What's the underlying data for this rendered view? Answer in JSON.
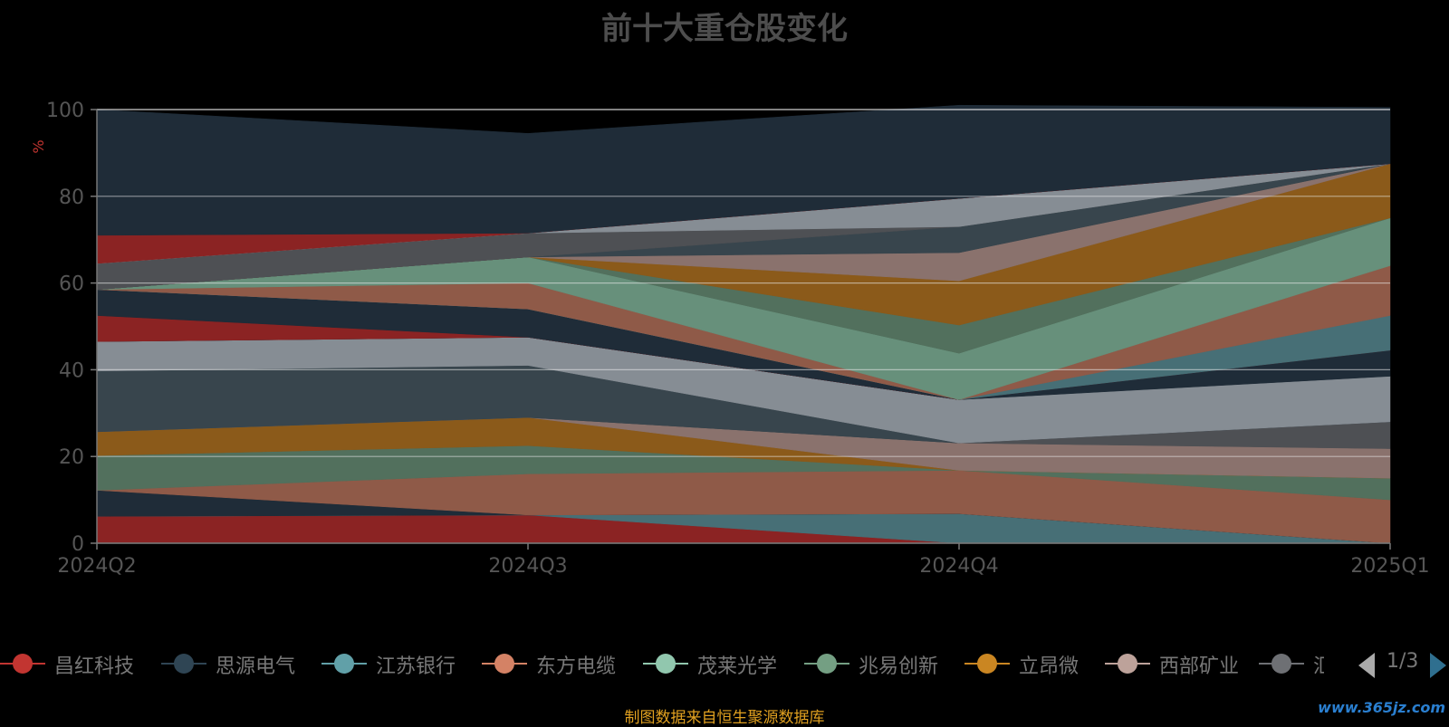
{
  "chart_data": {
    "type": "area",
    "stacked": true,
    "title": "前十大重仓股变化",
    "ylabel": "%",
    "ylim": [
      0,
      100
    ],
    "yticks": [
      0,
      20,
      40,
      60,
      80,
      100
    ],
    "grid": true,
    "categories": [
      "2024Q2",
      "2024Q3",
      "2024Q4",
      "2025Q1"
    ],
    "series": [
      {
        "name": "昌红科技",
        "color": "#8b2323",
        "values": [
          6.2,
          6.5,
          0,
          0
        ]
      },
      {
        "name": "",
        "color": "#476f76",
        "values": [
          0,
          0,
          6.8,
          0
        ]
      },
      {
        "name": "",
        "color": "#1f2c38",
        "values": [
          6.0,
          0,
          0,
          0
        ]
      },
      {
        "name": "东方电缆",
        "color": "#8f5a48",
        "values": [
          0,
          9.5,
          10.0,
          10.0
        ]
      },
      {
        "name": "",
        "color": "#52705d",
        "values": [
          8.0,
          6.5,
          0,
          5.0
        ]
      },
      {
        "name": "立昂微",
        "color": "#8b5a1a",
        "values": [
          5.5,
          6.5,
          0,
          0
        ]
      },
      {
        "name": "西部矿业",
        "color": "#8a726d",
        "values": [
          0,
          0,
          6.3,
          6.8
        ]
      },
      {
        "name": "",
        "color": "#4e5054",
        "values": [
          0,
          0,
          0,
          6.2
        ]
      },
      {
        "name": "",
        "color": "#38454d",
        "values": [
          14.0,
          12.0,
          0,
          0
        ]
      },
      {
        "name": "",
        "color": "#868d94",
        "values": [
          6.8,
          6.5,
          10.0,
          10.5
        ]
      },
      {
        "name": "",
        "color": "#1f2c38",
        "values": [
          0,
          0,
          0,
          6.0
        ]
      },
      {
        "name": "",
        "color": "#8b2323",
        "values": [
          6.0,
          0,
          0,
          0
        ]
      },
      {
        "name": "",
        "color": "#1f2c38",
        "values": [
          6.0,
          6.5,
          0,
          0
        ]
      },
      {
        "name": "",
        "color": "#476f76",
        "values": [
          0,
          0,
          0,
          8.0
        ]
      },
      {
        "name": "",
        "color": "#8f5a48",
        "values": [
          0,
          6.0,
          0,
          11.5
        ]
      },
      {
        "name": "",
        "color": "#67907b",
        "values": [
          0,
          6.0,
          10.7,
          11.0
        ]
      },
      {
        "name": "",
        "color": "#52705d",
        "values": [
          0,
          0,
          6.5,
          0
        ]
      },
      {
        "name": "",
        "color": "#8b5a1a",
        "values": [
          0,
          0,
          10.2,
          12.5
        ]
      },
      {
        "name": "",
        "color": "#8a726d",
        "values": [
          0,
          0,
          6.5,
          0
        ]
      },
      {
        "name": "",
        "color": "#38454d",
        "values": [
          0,
          0,
          6.0,
          0
        ]
      },
      {
        "name": "",
        "color": "#4e5054",
        "values": [
          6.0,
          5.5,
          0,
          0
        ]
      },
      {
        "name": "",
        "color": "#868d94",
        "values": [
          0,
          0,
          6.5,
          0
        ]
      },
      {
        "name": "",
        "color": "#8b2323",
        "values": [
          6.5,
          0,
          0,
          0
        ]
      },
      {
        "name": "",
        "color": "#1f2c38",
        "values": [
          29.0,
          23.0,
          21.5,
          13.0
        ]
      }
    ]
  },
  "legend": {
    "items": [
      {
        "label": "昌红科技",
        "color": "#c23531"
      },
      {
        "label": "思源电气",
        "color": "#2f4554"
      },
      {
        "label": "江苏银行",
        "color": "#61a0a8"
      },
      {
        "label": "东方电缆",
        "color": "#d48265"
      },
      {
        "label": "茂莱光学",
        "color": "#91c7ae"
      },
      {
        "label": "兆易创新",
        "color": "#749f83"
      },
      {
        "label": "立昂微",
        "color": "#ca8622"
      },
      {
        "label": "西部矿业",
        "color": "#bda29a"
      },
      {
        "label": "汇川技术",
        "color": "#6e7074"
      }
    ],
    "page": "1/3"
  },
  "source_note": "制图数据来自恒生聚源数据库",
  "watermark": "www.365jz.com"
}
